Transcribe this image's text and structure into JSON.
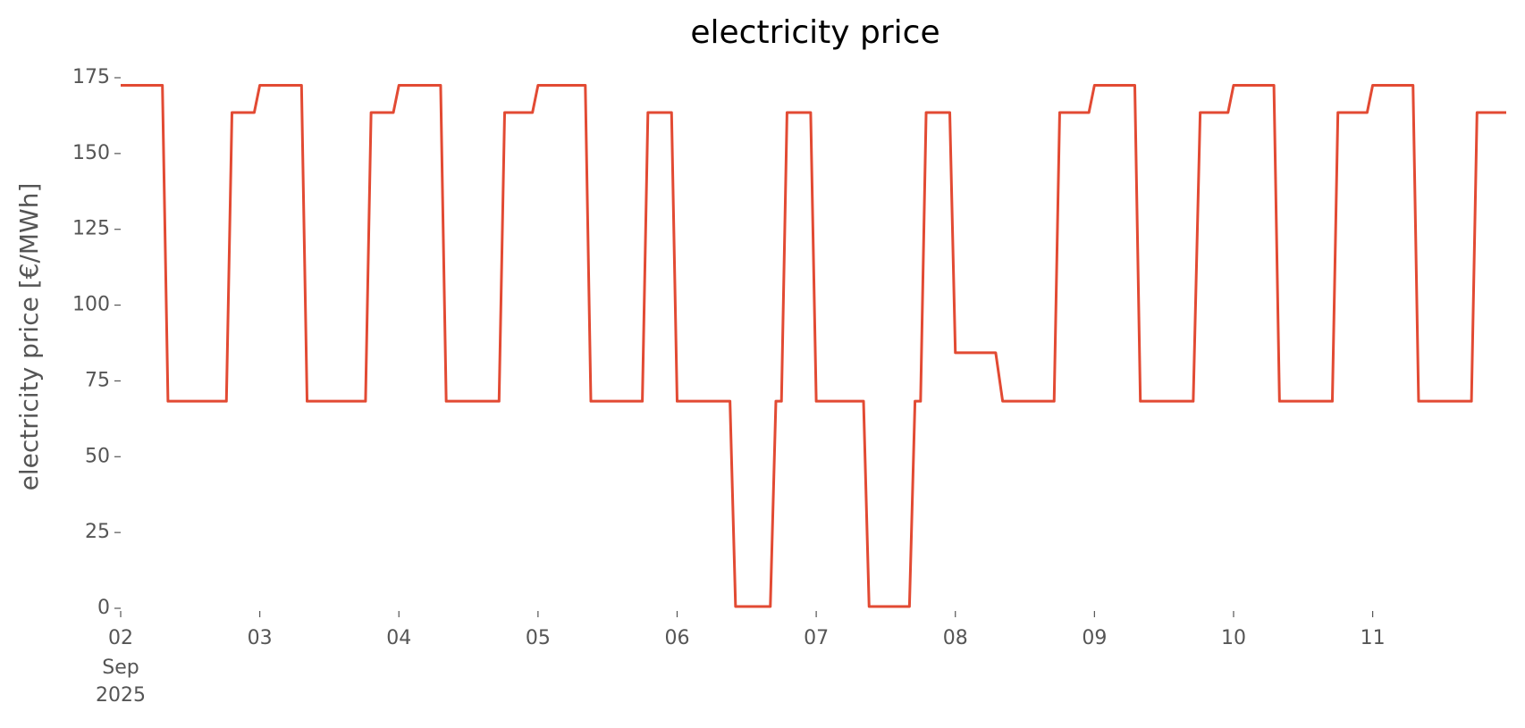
{
  "chart_data": {
    "type": "line",
    "title": "electricity price",
    "ylabel": "electricity price [€/MWh]",
    "x_month_label": "Sep",
    "x_year_label": "2025",
    "x": [
      2,
      2.3,
      2.34,
      2.76,
      2.8,
      2.96,
      3,
      3.3,
      3.34,
      3.76,
      3.8,
      3.96,
      4,
      4.3,
      4.34,
      4.72,
      4.76,
      4.96,
      5,
      5.34,
      5.38,
      5.75,
      5.79,
      5.96,
      6,
      6.38,
      6.42,
      6.67,
      6.71,
      6.75,
      6.79,
      6.96,
      7,
      7.34,
      7.38,
      7.67,
      7.71,
      7.75,
      7.79,
      7.96,
      8,
      8.29,
      8.34,
      8.71,
      8.75,
      8.96,
      9,
      9.29,
      9.33,
      9.71,
      9.76,
      9.96,
      10,
      10.29,
      10.33,
      10.71,
      10.75,
      10.96,
      11,
      11.29,
      11.33,
      11.71,
      11.75,
      11.96
    ],
    "series": [
      {
        "name": "electricity price",
        "color": "#e24a33",
        "values": [
          172.5,
          172.5,
          68.3,
          68.3,
          163.5,
          163.5,
          172.5,
          172.5,
          68.3,
          68.3,
          163.5,
          163.5,
          172.5,
          172.5,
          68.3,
          68.3,
          163.5,
          163.5,
          172.5,
          172.5,
          68.3,
          68.3,
          163.5,
          163.5,
          68.3,
          68.3,
          0.6,
          0.6,
          68.3,
          68.3,
          163.5,
          163.5,
          68.3,
          68.3,
          0.6,
          0.6,
          68.3,
          68.3,
          163.5,
          163.5,
          84.3,
          84.3,
          68.3,
          68.3,
          163.5,
          163.5,
          172.5,
          172.5,
          68.3,
          68.3,
          163.5,
          163.5,
          172.5,
          172.5,
          68.3,
          68.3,
          163.5,
          163.5,
          172.5,
          172.5,
          68.3,
          68.3,
          163.5,
          163.5
        ]
      }
    ],
    "xlim": [
      2,
      11.96
    ],
    "ylim": [
      0,
      175
    ],
    "xticks": [
      {
        "value": 2,
        "label": "02"
      },
      {
        "value": 3,
        "label": "03"
      },
      {
        "value": 4,
        "label": "04"
      },
      {
        "value": 5,
        "label": "05"
      },
      {
        "value": 6,
        "label": "06"
      },
      {
        "value": 7,
        "label": "07"
      },
      {
        "value": 8,
        "label": "08"
      },
      {
        "value": 9,
        "label": "09"
      },
      {
        "value": 10,
        "label": "10"
      },
      {
        "value": 11,
        "label": "11"
      }
    ],
    "yticks": [
      0,
      25,
      50,
      75,
      100,
      125,
      150,
      175
    ],
    "grid": false
  }
}
